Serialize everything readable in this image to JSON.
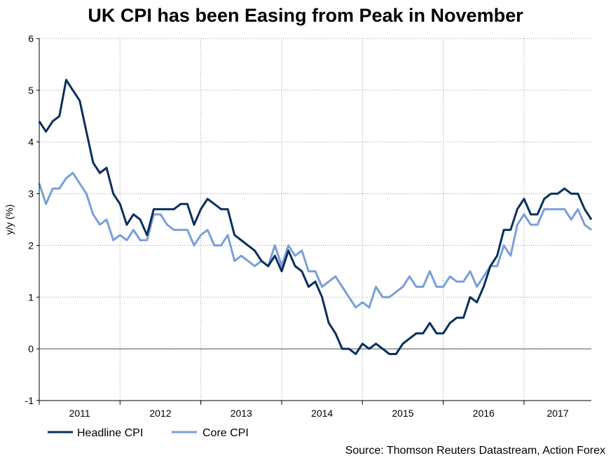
{
  "chart_data": {
    "type": "line",
    "title": "UK CPI has been Easing from Peak in November",
    "ylabel": "y/y (%)",
    "xlabel": "",
    "ylim": [
      -1,
      6
    ],
    "yticks": [
      "-1",
      "0",
      "1",
      "2",
      "3",
      "4",
      "5",
      "6"
    ],
    "ytick_values": [
      -1,
      0,
      1,
      2,
      3,
      4,
      5,
      6
    ],
    "x_start": "2011-01",
    "x_end": "2017-11",
    "year_labels": [
      "2011",
      "2012",
      "2013",
      "2014",
      "2015",
      "2016",
      "2017"
    ],
    "grid": true,
    "zero_line": true,
    "series": [
      {
        "name": "Headline CPI",
        "color": "#0a2f5c",
        "values": [
          4.4,
          4.2,
          4.4,
          4.5,
          5.2,
          5.0,
          4.8,
          4.2,
          3.6,
          3.4,
          3.5,
          3.0,
          2.8,
          2.4,
          2.6,
          2.5,
          2.2,
          2.7,
          2.7,
          2.7,
          2.7,
          2.8,
          2.8,
          2.4,
          2.7,
          2.9,
          2.8,
          2.7,
          2.7,
          2.2,
          2.1,
          2.0,
          1.9,
          1.7,
          1.6,
          1.8,
          1.5,
          1.9,
          1.6,
          1.5,
          1.2,
          1.3,
          1.0,
          0.5,
          0.3,
          0.0,
          0.0,
          -0.1,
          0.1,
          0.0,
          0.1,
          0.0,
          -0.1,
          -0.1,
          0.1,
          0.2,
          0.3,
          0.3,
          0.5,
          0.3,
          0.3,
          0.5,
          0.6,
          0.6,
          1.0,
          0.9,
          1.2,
          1.6,
          1.8,
          2.3,
          2.3,
          2.7,
          2.9,
          2.6,
          2.6,
          2.9,
          3.0,
          3.0,
          3.1,
          3.0,
          3.0,
          2.7,
          2.5
        ]
      },
      {
        "name": "Core CPI",
        "color": "#7b9fd8",
        "values": [
          3.2,
          2.8,
          3.1,
          3.1,
          3.3,
          3.4,
          3.2,
          3.0,
          2.6,
          2.4,
          2.5,
          2.1,
          2.2,
          2.1,
          2.3,
          2.1,
          2.1,
          2.6,
          2.6,
          2.4,
          2.3,
          2.3,
          2.3,
          2.0,
          2.2,
          2.3,
          2.0,
          2.0,
          2.2,
          1.7,
          1.8,
          1.7,
          1.6,
          1.7,
          1.6,
          2.0,
          1.6,
          2.0,
          1.8,
          1.9,
          1.5,
          1.5,
          1.2,
          1.3,
          1.4,
          1.2,
          1.0,
          0.8,
          0.9,
          0.8,
          1.2,
          1.0,
          1.0,
          1.1,
          1.2,
          1.4,
          1.2,
          1.2,
          1.5,
          1.2,
          1.2,
          1.4,
          1.3,
          1.3,
          1.5,
          1.2,
          1.4,
          1.6,
          1.6,
          2.0,
          1.8,
          2.4,
          2.6,
          2.4,
          2.4,
          2.7,
          2.7,
          2.7,
          2.7,
          2.5,
          2.7,
          2.4,
          2.3
        ]
      }
    ],
    "legend": [
      "Headline CPI",
      "Core CPI"
    ],
    "legend_position": "bottom-left",
    "source": "Source: Thomson Reuters Datastream, Action Forex"
  }
}
